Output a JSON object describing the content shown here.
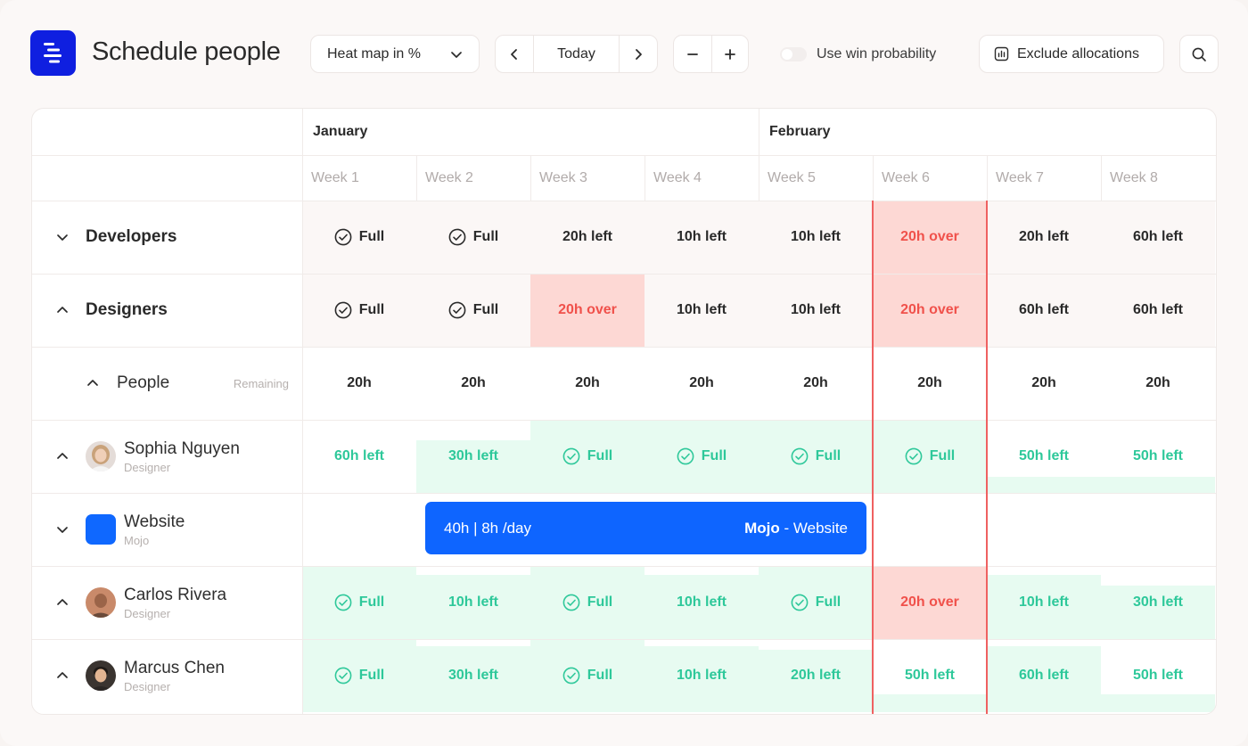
{
  "app": {
    "title": "Schedule people"
  },
  "toolbar": {
    "view_select": "Heat map in %",
    "today": "Today",
    "win_probability": "Use win probability",
    "exclude": "Exclude allocations"
  },
  "grid": {
    "months": [
      "January",
      "February"
    ],
    "weeks": [
      "Week 1",
      "Week 2",
      "Week 3",
      "Week 4",
      "Week 5",
      "Week 6",
      "Week 7",
      "Week 8"
    ]
  },
  "groups": {
    "developers": {
      "name": "Developers",
      "cells": [
        "Full",
        "Full",
        "20h left",
        "10h left",
        "10h left",
        "20h over",
        "20h left",
        "60h left"
      ]
    },
    "designers": {
      "name": "Designers",
      "cells": [
        "Full",
        "Full",
        "20h over",
        "10h left",
        "10h left",
        "20h over",
        "60h left",
        "60h left"
      ]
    },
    "people": {
      "name": "People",
      "remaining_label": "Remaining",
      "cells": [
        "20h",
        "20h",
        "20h",
        "20h",
        "20h",
        "20h",
        "20h",
        "20h"
      ]
    }
  },
  "persons": {
    "sophia": {
      "name": "Sophia Nguyen",
      "role": "Designer",
      "cells": [
        "60h left",
        "30h left",
        "Full",
        "Full",
        "Full",
        "Full",
        "50h left",
        "50h left"
      ]
    },
    "website": {
      "name": "Website",
      "client": "Mojo",
      "booking": {
        "hours": "40h | 8h /day",
        "client": "Mojo",
        "separator": " - ",
        "project": "Website"
      }
    },
    "carlos": {
      "name": "Carlos Rivera",
      "role": "Designer",
      "cells": [
        "Full",
        "10h left",
        "Full",
        "10h left",
        "Full",
        "20h over",
        "10h left",
        "30h left"
      ]
    },
    "marcus": {
      "name": "Marcus Chen",
      "role": "Designer",
      "cells": [
        "Full",
        "30h left",
        "Full",
        "10h left",
        "20h left",
        "50h left",
        "60h left",
        "50h left"
      ]
    }
  },
  "colors": {
    "brand": "#0f1fe0",
    "booking": "#0e65ff",
    "over": "#f0514b",
    "over_bg": "#fdd8d4",
    "available": "#2ec89a",
    "available_bg": "#e7fbf1"
  }
}
